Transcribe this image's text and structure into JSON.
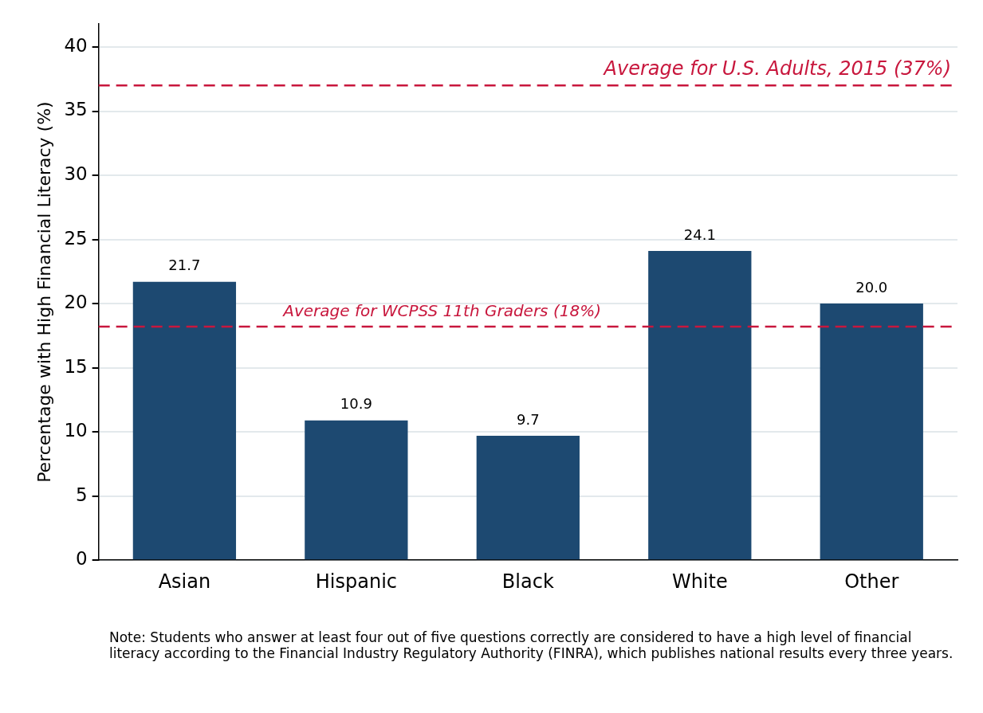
{
  "chart_data": {
    "type": "bar",
    "ylabel": "Percentage with High Financial Literacy (%)",
    "categories": [
      "Asian",
      "Hispanic",
      "Black",
      "White",
      "Other"
    ],
    "values": [
      21.7,
      10.9,
      9.7,
      24.1,
      20.0
    ],
    "color": "#1d4971",
    "value_labels": [
      "21.7",
      "10.9",
      "9.7",
      "24.1",
      "20.0"
    ],
    "ylim": [
      0,
      41.8
    ],
    "yticks": [
      0,
      5,
      10,
      15,
      20,
      25,
      30,
      35,
      40
    ],
    "grid": "y",
    "legend": false,
    "ref_lines": [
      {
        "axis": "y",
        "value": 37,
        "label": "Average for U.S. Adults, 2015 (37%)",
        "color": "#c8173d",
        "line_style": "dashed"
      },
      {
        "axis": "y",
        "value": 18.2,
        "label": "Average for WCPSS 11th Graders (18%)",
        "color": "#c8173d",
        "line_style": "dashed"
      }
    ],
    "annotations": [
      "Note: Students who answer at least four out of five questions correctly are considered to have a high level of financial literacy according to the Financial Industry Regulatory Authority (FINRA), which publishes national results every three years."
    ]
  }
}
